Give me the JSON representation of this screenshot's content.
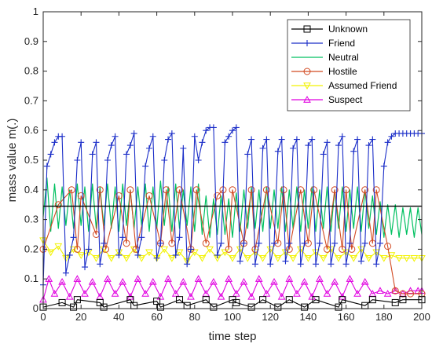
{
  "chart_data": {
    "type": "line",
    "title": "",
    "xlabel": "time step",
    "ylabel": "mass value m(.)",
    "xlim": [
      0,
      200
    ],
    "ylim": [
      0,
      1
    ],
    "x_ticks": [
      "0",
      "20",
      "40",
      "60",
      "80",
      "100",
      "120",
      "140",
      "160",
      "180",
      "200"
    ],
    "y_ticks": [
      "0",
      "0.1",
      "0.2",
      "0.3",
      "0.4",
      "0.5",
      "0.6",
      "0.7",
      "0.8",
      "0.9",
      "1"
    ],
    "grid": false,
    "legend_position": "top-right",
    "colors": {
      "Unknown": "#000000",
      "Friend": "#1a2dc8",
      "Neutral": "#00c060",
      "Hostile": "#d24a22",
      "Assumed Friend": "#f2f200",
      "Suspect": "#e000e0"
    },
    "series": [
      {
        "name": "Unknown",
        "marker": "square",
        "x": [
          0,
          10,
          16,
          18,
          30,
          32,
          46,
          48,
          60,
          62,
          72,
          76,
          86,
          90,
          100,
          102,
          110,
          116,
          124,
          130,
          138,
          144,
          156,
          158,
          170,
          174,
          186,
          190,
          200
        ],
        "values": [
          0.005,
          0.02,
          0.005,
          0.03,
          0.02,
          0.005,
          0.03,
          0.01,
          0.025,
          0.005,
          0.03,
          0.01,
          0.03,
          0.005,
          0.03,
          0.02,
          0.005,
          0.03,
          0.005,
          0.03,
          0.005,
          0.03,
          0.005,
          0.03,
          0.01,
          0.03,
          0.02,
          0.03,
          0.03
        ]
      },
      {
        "name": "Friend",
        "marker": "plus",
        "x": [
          0,
          2,
          4,
          6,
          8,
          10,
          12,
          14,
          16,
          18,
          20,
          22,
          24,
          26,
          28,
          30,
          32,
          34,
          36,
          38,
          40,
          42,
          44,
          46,
          48,
          50,
          52,
          54,
          56,
          58,
          60,
          62,
          64,
          66,
          68,
          70,
          72,
          74,
          76,
          78,
          80,
          82,
          84,
          86,
          88,
          90,
          92,
          94,
          96,
          98,
          100,
          102,
          104,
          106,
          108,
          110,
          112,
          114,
          116,
          118,
          120,
          122,
          124,
          126,
          128,
          130,
          132,
          134,
          136,
          138,
          140,
          142,
          144,
          146,
          148,
          150,
          152,
          154,
          156,
          158,
          160,
          162,
          164,
          166,
          168,
          170,
          172,
          174,
          176,
          178,
          180,
          182,
          184,
          186,
          188,
          190,
          192,
          194,
          196,
          198,
          200
        ],
        "values": [
          0.08,
          0.48,
          0.52,
          0.56,
          0.58,
          0.58,
          0.12,
          0.18,
          0.24,
          0.5,
          0.56,
          0.14,
          0.2,
          0.52,
          0.56,
          0.15,
          0.22,
          0.5,
          0.55,
          0.58,
          0.18,
          0.24,
          0.52,
          0.55,
          0.59,
          0.18,
          0.24,
          0.48,
          0.54,
          0.58,
          0.17,
          0.22,
          0.5,
          0.57,
          0.59,
          0.18,
          0.24,
          0.54,
          0.15,
          0.2,
          0.58,
          0.5,
          0.56,
          0.6,
          0.61,
          0.61,
          0.18,
          0.22,
          0.56,
          0.58,
          0.6,
          0.61,
          0.16,
          0.22,
          0.52,
          0.57,
          0.15,
          0.22,
          0.54,
          0.57,
          0.15,
          0.22,
          0.53,
          0.57,
          0.16,
          0.22,
          0.54,
          0.57,
          0.15,
          0.22,
          0.55,
          0.57,
          0.15,
          0.22,
          0.52,
          0.56,
          0.15,
          0.22,
          0.55,
          0.58,
          0.15,
          0.22,
          0.53,
          0.57,
          0.16,
          0.22,
          0.55,
          0.57,
          0.15,
          0.22,
          0.48,
          0.56,
          0.58,
          0.59,
          0.59,
          0.59,
          0.59,
          0.59,
          0.59,
          0.59,
          0.59
        ]
      },
      {
        "name": "Neutral",
        "marker": "none",
        "x": [
          0,
          2,
          4,
          6,
          8,
          10,
          12,
          14,
          16,
          18,
          20,
          22,
          24,
          26,
          28,
          30,
          32,
          34,
          36,
          38,
          40,
          42,
          44,
          46,
          48,
          50,
          52,
          54,
          56,
          58,
          60,
          62,
          64,
          66,
          68,
          70,
          72,
          74,
          76,
          78,
          80,
          82,
          84,
          86,
          88,
          90,
          92,
          94,
          96,
          98,
          100,
          102,
          104,
          106,
          108,
          110,
          112,
          114,
          116,
          118,
          120,
          122,
          124,
          126,
          128,
          130,
          132,
          134,
          136,
          138,
          140,
          142,
          144,
          146,
          148,
          150,
          152,
          154,
          156,
          158,
          160,
          162,
          164,
          166,
          168,
          170,
          172,
          174,
          176,
          178,
          180,
          182,
          184,
          186,
          188,
          190,
          192,
          194,
          196,
          198,
          200
        ],
        "values": [
          0.31,
          0.44,
          0.26,
          0.42,
          0.27,
          0.41,
          0.28,
          0.4,
          0.27,
          0.42,
          0.28,
          0.41,
          0.26,
          0.42,
          0.27,
          0.41,
          0.28,
          0.42,
          0.27,
          0.41,
          0.26,
          0.42,
          0.28,
          0.4,
          0.27,
          0.41,
          0.28,
          0.42,
          0.26,
          0.41,
          0.27,
          0.43,
          0.28,
          0.41,
          0.26,
          0.42,
          0.27,
          0.4,
          0.28,
          0.41,
          0.26,
          0.42,
          0.25,
          0.38,
          0.24,
          0.37,
          0.25,
          0.38,
          0.25,
          0.37,
          0.24,
          0.39,
          0.26,
          0.4,
          0.27,
          0.41,
          0.27,
          0.4,
          0.26,
          0.41,
          0.27,
          0.4,
          0.27,
          0.41,
          0.26,
          0.4,
          0.27,
          0.41,
          0.26,
          0.4,
          0.27,
          0.41,
          0.26,
          0.4,
          0.27,
          0.41,
          0.26,
          0.4,
          0.27,
          0.41,
          0.26,
          0.4,
          0.27,
          0.41,
          0.26,
          0.4,
          0.27,
          0.38,
          0.25,
          0.36,
          0.24,
          0.35,
          0.25,
          0.35,
          0.24,
          0.34,
          0.25,
          0.34,
          0.24,
          0.34,
          0.25
        ]
      },
      {
        "name": "Hostile",
        "marker": "circle",
        "x": [
          0,
          8,
          15,
          18,
          20,
          28,
          30,
          33,
          40,
          44,
          46,
          49,
          56,
          62,
          65,
          68,
          72,
          78,
          81,
          86,
          92,
          95,
          98,
          100,
          106,
          110,
          112,
          118,
          124,
          127,
          130,
          136,
          140,
          143,
          150,
          154,
          158,
          160,
          163,
          170,
          174,
          176,
          182,
          186,
          190,
          194,
          200
        ],
        "values": [
          0.2,
          0.35,
          0.4,
          0.2,
          0.38,
          0.25,
          0.4,
          0.2,
          0.38,
          0.22,
          0.4,
          0.2,
          0.38,
          0.22,
          0.4,
          0.22,
          0.4,
          0.2,
          0.4,
          0.22,
          0.38,
          0.4,
          0.2,
          0.4,
          0.22,
          0.4,
          0.2,
          0.4,
          0.22,
          0.4,
          0.2,
          0.4,
          0.22,
          0.4,
          0.2,
          0.4,
          0.2,
          0.4,
          0.2,
          0.4,
          0.22,
          0.4,
          0.21,
          0.06,
          0.05,
          0.05,
          0.05
        ]
      },
      {
        "name": "Assumed Friend",
        "marker": "triangle-down",
        "x": [
          0,
          4,
          8,
          12,
          16,
          20,
          24,
          28,
          32,
          36,
          40,
          44,
          48,
          52,
          56,
          60,
          64,
          68,
          72,
          76,
          80,
          84,
          88,
          92,
          96,
          100,
          104,
          108,
          112,
          116,
          120,
          124,
          128,
          132,
          136,
          140,
          144,
          148,
          152,
          156,
          160,
          164,
          168,
          172,
          176,
          180,
          184,
          188,
          192,
          196,
          200
        ],
        "values": [
          0.23,
          0.19,
          0.21,
          0.17,
          0.2,
          0.18,
          0.19,
          0.17,
          0.2,
          0.17,
          0.19,
          0.17,
          0.2,
          0.17,
          0.19,
          0.17,
          0.2,
          0.17,
          0.19,
          0.16,
          0.19,
          0.17,
          0.2,
          0.17,
          0.19,
          0.17,
          0.2,
          0.17,
          0.19,
          0.17,
          0.2,
          0.17,
          0.19,
          0.17,
          0.2,
          0.17,
          0.19,
          0.17,
          0.2,
          0.17,
          0.19,
          0.17,
          0.2,
          0.17,
          0.19,
          0.17,
          0.18,
          0.17,
          0.17,
          0.17,
          0.17
        ]
      },
      {
        "name": "Suspect",
        "marker": "triangle-up",
        "x": [
          0,
          3,
          6,
          10,
          14,
          18,
          22,
          26,
          30,
          34,
          38,
          42,
          46,
          50,
          54,
          58,
          62,
          66,
          70,
          74,
          78,
          82,
          86,
          90,
          94,
          98,
          102,
          106,
          110,
          114,
          118,
          122,
          126,
          130,
          134,
          138,
          142,
          146,
          150,
          154,
          158,
          162,
          166,
          170,
          174,
          178,
          182,
          186,
          190,
          194,
          198,
          200
        ],
        "values": [
          0.03,
          0.1,
          0.05,
          0.09,
          0.04,
          0.1,
          0.05,
          0.09,
          0.04,
          0.1,
          0.05,
          0.09,
          0.04,
          0.1,
          0.05,
          0.09,
          0.04,
          0.1,
          0.05,
          0.09,
          0.04,
          0.1,
          0.05,
          0.09,
          0.04,
          0.1,
          0.05,
          0.09,
          0.04,
          0.1,
          0.05,
          0.09,
          0.04,
          0.1,
          0.05,
          0.09,
          0.04,
          0.1,
          0.05,
          0.09,
          0.04,
          0.1,
          0.05,
          0.09,
          0.05,
          0.06,
          0.05,
          0.06,
          0.05,
          0.06,
          0.06,
          0.06
        ]
      }
    ],
    "reference_line": {
      "color": "#000000",
      "y": 0.345
    }
  }
}
